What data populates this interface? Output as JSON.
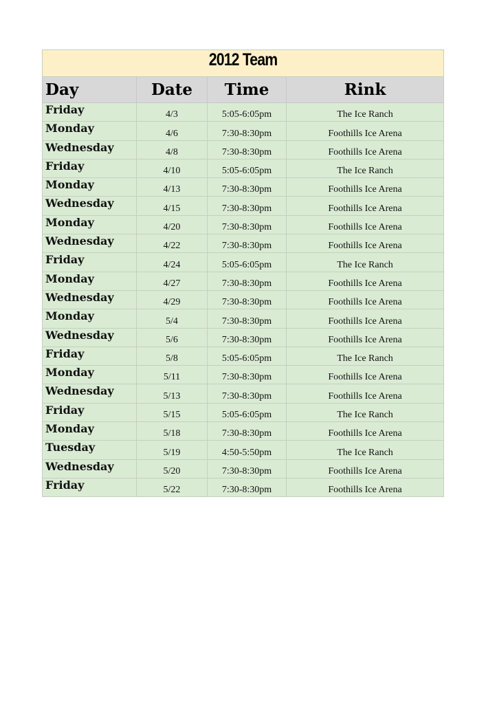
{
  "title": "2012 Team",
  "headers": [
    "Day",
    "Date",
    "Time",
    "Rink"
  ],
  "rows": [
    [
      "Friday",
      "4/3",
      "5:05-6:05pm",
      "The Ice Ranch"
    ],
    [
      "Monday",
      "4/6",
      "7:30-8:30pm",
      "Foothills Ice Arena"
    ],
    [
      "Wednesday",
      "4/8",
      "7:30-8:30pm",
      "Foothills Ice Arena"
    ],
    [
      "Friday",
      "4/10",
      "5:05-6:05pm",
      "The Ice Ranch"
    ],
    [
      "Monday",
      "4/13",
      "7:30-8:30pm",
      "Foothills Ice Arena"
    ],
    [
      "Wednesday",
      "4/15",
      "7:30-8:30pm",
      "Foothills Ice Arena"
    ],
    [
      "Monday",
      "4/20",
      "7:30-8:30pm",
      "Foothills Ice Arena"
    ],
    [
      "Wednesday",
      "4/22",
      "7:30-8:30pm",
      "Foothills Ice Arena"
    ],
    [
      "Friday",
      "4/24",
      "5:05-6:05pm",
      "The Ice Ranch"
    ],
    [
      "Monday",
      "4/27",
      "7:30-8:30pm",
      "Foothills Ice Arena"
    ],
    [
      "Wednesday",
      "4/29",
      "7:30-8:30pm",
      "Foothills Ice Arena"
    ],
    [
      "Monday",
      "5/4",
      "7:30-8:30pm",
      "Foothills Ice Arena"
    ],
    [
      "Wednesday",
      "5/6",
      "7:30-8:30pm",
      "Foothills Ice Arena"
    ],
    [
      "Friday",
      "5/8",
      "5:05-6:05pm",
      "The Ice Ranch"
    ],
    [
      "Monday",
      "5/11",
      "7:30-8:30pm",
      "Foothills Ice Arena"
    ],
    [
      "Wednesday",
      "5/13",
      "7:30-8:30pm",
      "Foothills Ice Arena"
    ],
    [
      "Friday",
      "5/15",
      "5:05-6:05pm",
      "The Ice Ranch"
    ],
    [
      "Monday",
      "5/18",
      "7:30-8:30pm",
      "Foothills Ice Arena"
    ],
    [
      "Tuesday",
      "5/19",
      "4:50-5:50pm",
      "The Ice Ranch"
    ],
    [
      "Wednesday",
      "5/20",
      "7:30-8:30pm",
      "Foothills Ice Arena"
    ],
    [
      "Friday",
      "5/22",
      "7:30-8:30pm",
      "Foothills Ice Arena"
    ]
  ],
  "colors": {
    "title_bg": "#fdf0c8",
    "header_bg": "#d8d8d8",
    "row_bg": "#daebd4"
  }
}
